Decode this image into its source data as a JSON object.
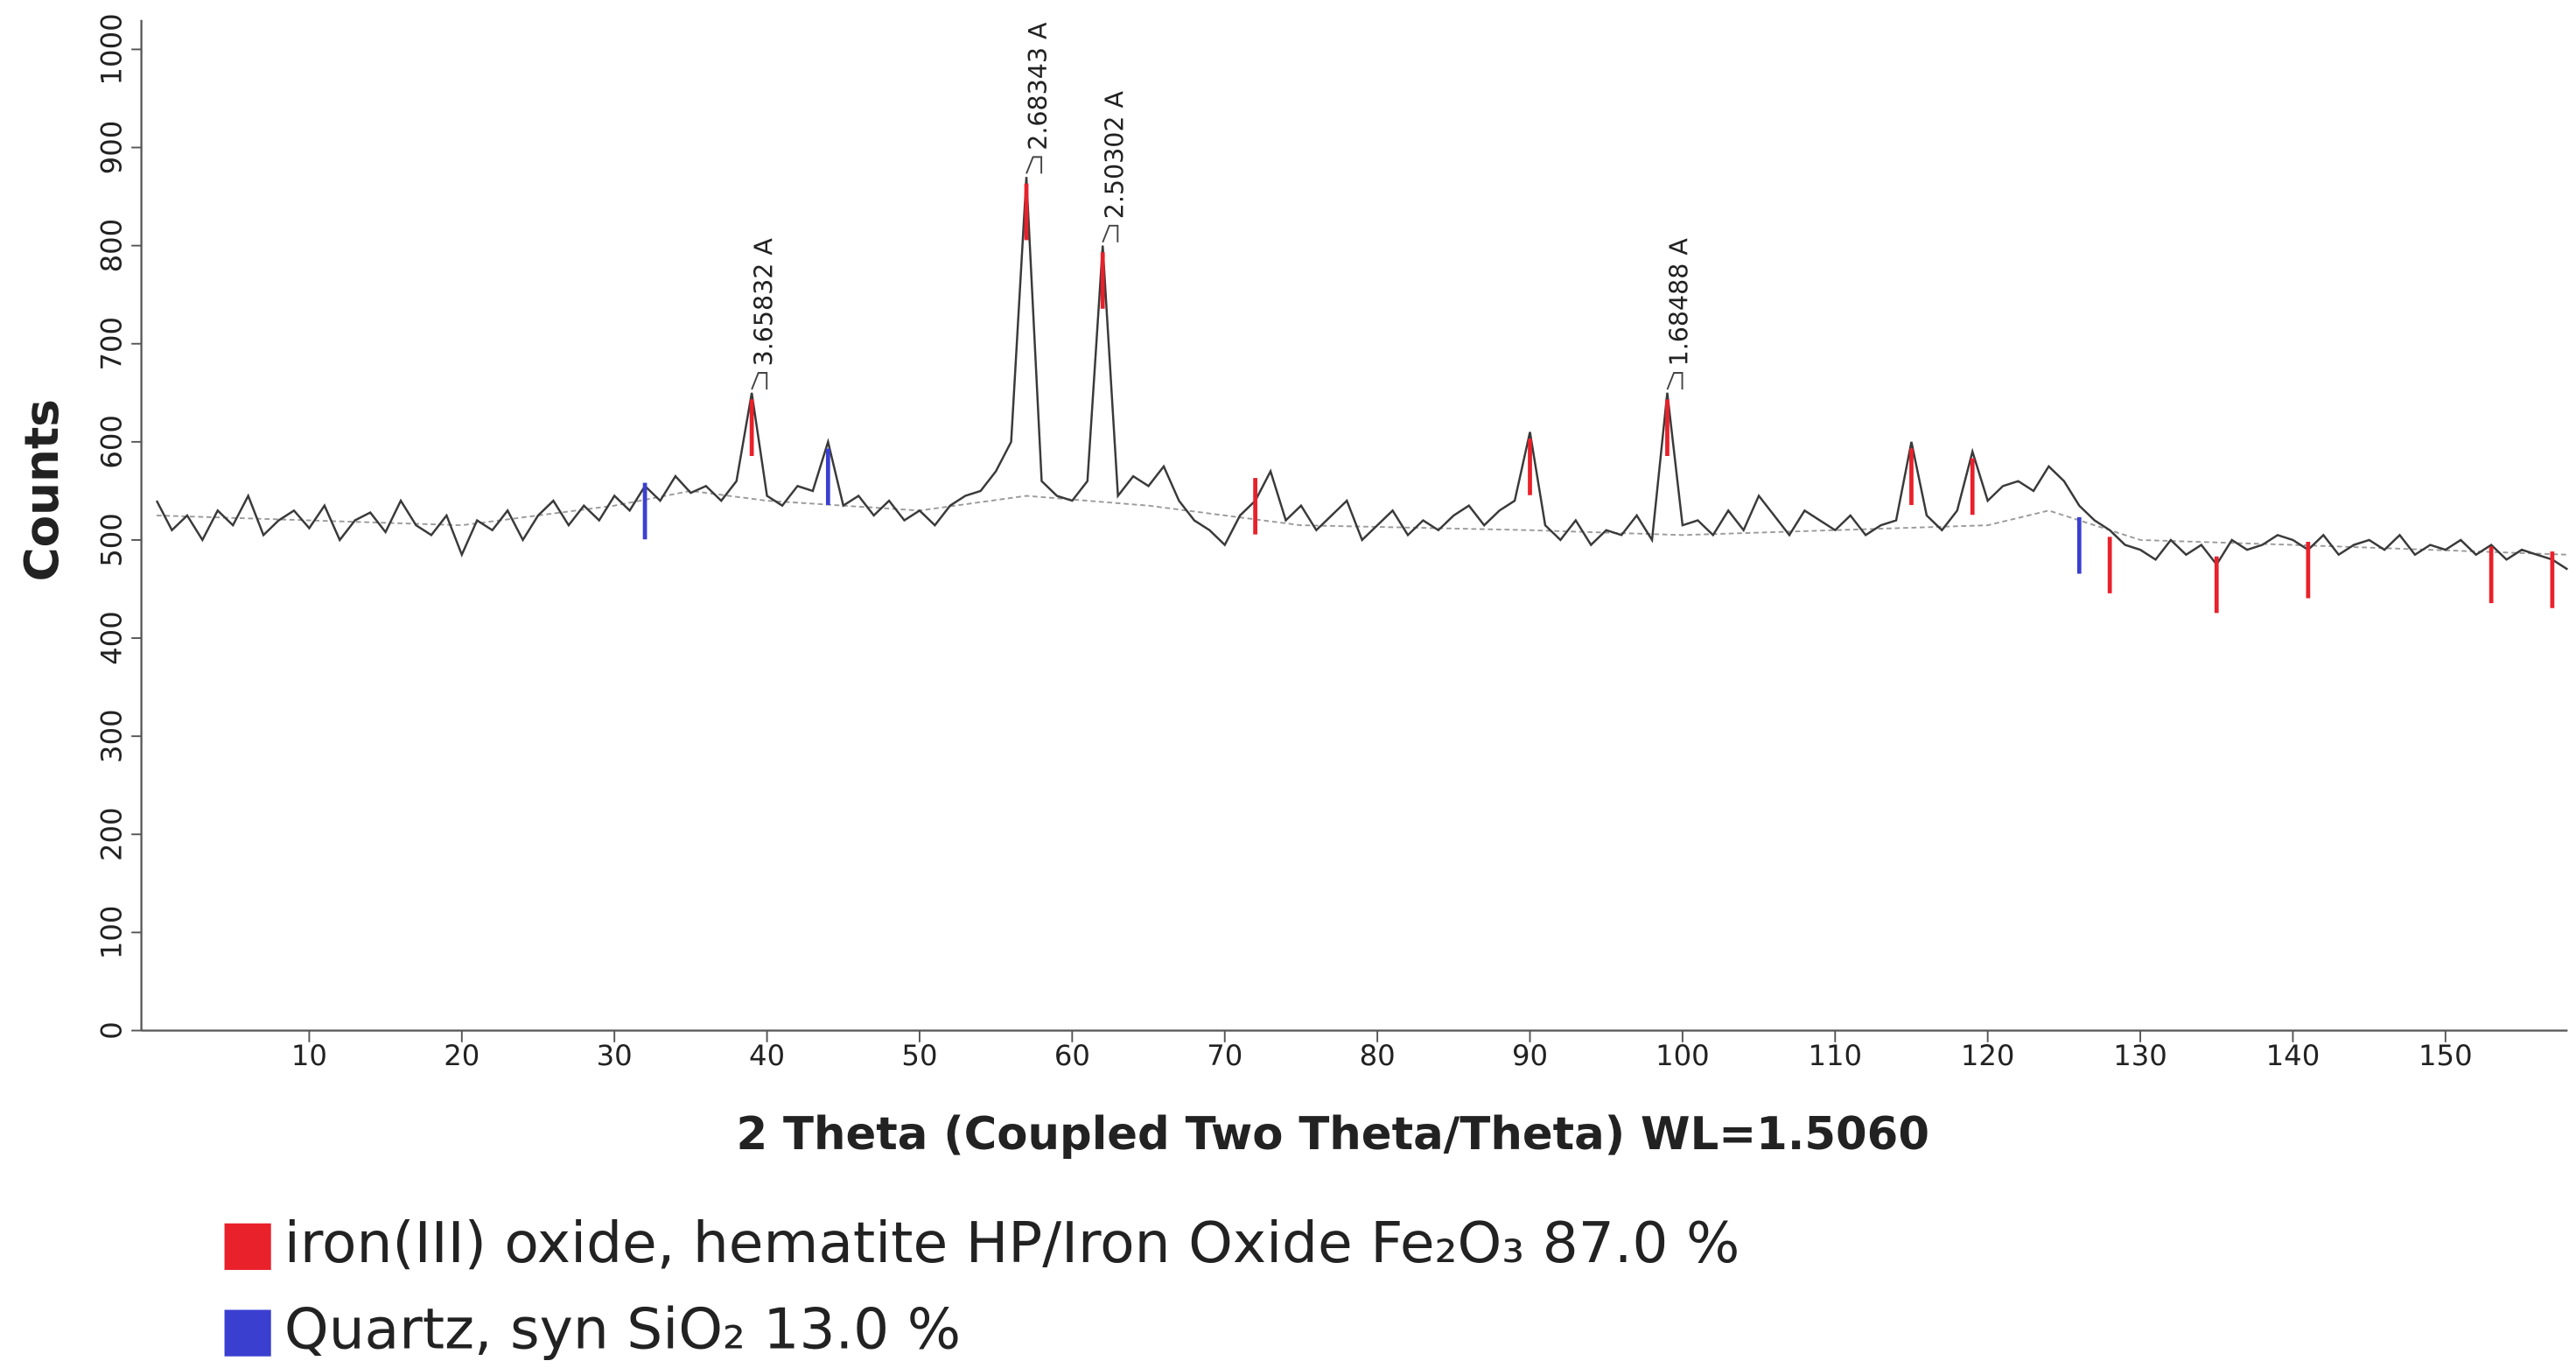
{
  "chart_data": {
    "type": "line",
    "x_label": "2 Theta (Coupled Two Theta/Theta) WL=1.5060",
    "y_label": "Counts",
    "color": "#3a3a3a",
    "x": [
      0,
      1,
      2,
      3,
      4,
      5,
      6,
      7,
      8,
      9,
      10,
      11,
      12,
      13,
      14,
      15,
      16,
      17,
      18,
      19,
      20,
      21,
      22,
      23,
      24,
      25,
      26,
      27,
      28,
      29,
      30,
      31,
      32,
      33,
      34,
      35,
      36,
      37,
      38,
      39,
      40,
      41,
      42,
      43,
      44,
      45,
      46,
      47,
      48,
      49,
      50,
      51,
      52,
      53,
      54,
      55,
      56,
      57,
      58,
      59,
      60,
      61,
      62,
      63,
      64,
      65,
      66,
      67,
      68,
      69,
      70,
      71,
      72,
      73,
      74,
      75,
      76,
      77,
      78,
      79,
      80,
      81,
      82,
      83,
      84,
      85,
      86,
      87,
      88,
      89,
      90,
      91,
      92,
      93,
      94,
      95,
      96,
      97,
      98,
      99,
      100,
      101,
      102,
      103,
      104,
      105,
      106,
      107,
      108,
      109,
      110,
      111,
      112,
      113,
      114,
      115,
      116,
      117,
      118,
      119,
      120,
      121,
      122,
      123,
      124,
      125,
      126,
      127,
      128,
      129,
      130,
      131,
      132,
      133,
      134,
      135,
      136,
      137,
      138,
      139,
      140,
      141,
      142,
      143,
      144,
      145,
      146,
      147,
      148,
      149,
      150,
      151,
      152,
      153,
      154,
      155,
      156,
      157,
      158
    ],
    "values": [
      540,
      510,
      525,
      500,
      530,
      515,
      545,
      505,
      520,
      530,
      512,
      535,
      500,
      520,
      528,
      508,
      540,
      515,
      505,
      525,
      485,
      520,
      510,
      530,
      500,
      525,
      540,
      515,
      535,
      520,
      545,
      530,
      555,
      540,
      565,
      548,
      555,
      540,
      560,
      650,
      545,
      535,
      555,
      550,
      600,
      535,
      545,
      525,
      540,
      520,
      530,
      515,
      535,
      545,
      550,
      570,
      600,
      870,
      560,
      545,
      540,
      560,
      800,
      545,
      565,
      555,
      575,
      540,
      520,
      510,
      495,
      525,
      540,
      570,
      520,
      535,
      510,
      525,
      540,
      500,
      515,
      530,
      505,
      520,
      510,
      525,
      535,
      515,
      530,
      540,
      610,
      515,
      500,
      520,
      495,
      510,
      505,
      525,
      500,
      650,
      515,
      520,
      505,
      530,
      510,
      545,
      525,
      505,
      530,
      520,
      510,
      525,
      505,
      515,
      520,
      600,
      525,
      510,
      530,
      590,
      540,
      555,
      560,
      550,
      575,
      560,
      535,
      520,
      510,
      495,
      490,
      480,
      500,
      485,
      495,
      475,
      500,
      490,
      495,
      505,
      500,
      490,
      505,
      485,
      495,
      500,
      490,
      505,
      485,
      495,
      490,
      500,
      485,
      495,
      480,
      490,
      485,
      480,
      470
    ],
    "background": {
      "color": "#9a9a9a",
      "x": [
        0,
        10,
        20,
        30,
        35,
        40,
        50,
        57,
        65,
        75,
        90,
        100,
        110,
        120,
        124,
        130,
        140,
        158
      ],
      "values": [
        525,
        520,
        515,
        535,
        550,
        540,
        530,
        545,
        535,
        515,
        510,
        505,
        510,
        515,
        530,
        500,
        495,
        485
      ]
    },
    "phases": [
      {
        "name": "iron(III) oxide, hematite HP/Iron Oxide Fe₂O₃   87.0 %",
        "color": "#e8212b",
        "x": [
          39,
          57,
          62,
          72,
          90,
          99,
          115,
          119,
          128,
          135,
          141,
          153,
          157
        ],
        "values": [
          650,
          870,
          800,
          570,
          610,
          650,
          600,
          590,
          510,
          490,
          505,
          500,
          495
        ]
      },
      {
        "name": "Quartz, syn SiO₂  13.0 %",
        "color": "#3b3fd0",
        "x": [
          32,
          44,
          126
        ],
        "values": [
          565,
          600,
          530
        ]
      }
    ],
    "annotations": [
      {
        "x": 39,
        "y": 650,
        "text": "3.65832 A"
      },
      {
        "x": 57,
        "y": 870,
        "text": "2.68343 A"
      },
      {
        "x": 62,
        "y": 800,
        "text": "2.50302 A"
      },
      {
        "x": 99,
        "y": 650,
        "text": "1.68488 A"
      }
    ],
    "xlim": [
      -1,
      158
    ],
    "ylim": [
      0,
      1030
    ],
    "xticks": [
      10,
      20,
      30,
      40,
      50,
      60,
      70,
      80,
      90,
      100,
      110,
      120,
      130,
      140,
      150
    ],
    "yticks": [
      0,
      100,
      200,
      300,
      400,
      500,
      600,
      700,
      800,
      900,
      1000
    ]
  }
}
